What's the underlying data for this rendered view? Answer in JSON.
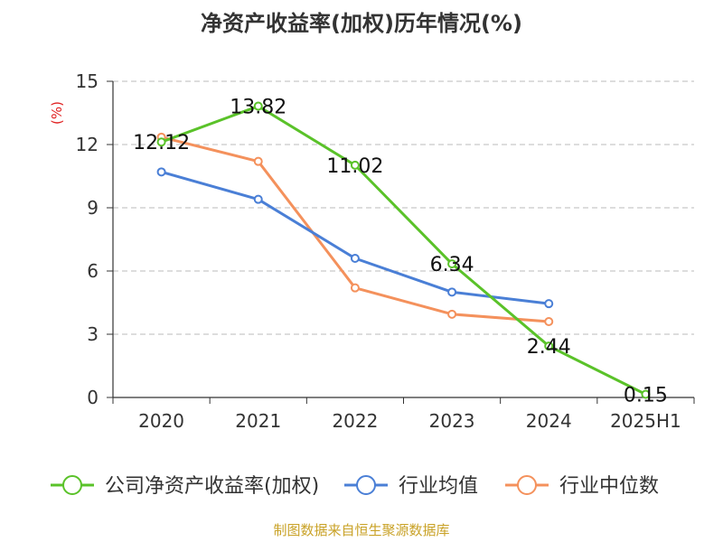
{
  "title": "净资产收益率(加权)历年情况(%)",
  "source": "制图数据来自恒生聚源数据库",
  "chart_data": {
    "type": "line",
    "title": "净资产收益率(加权)历年情况(%)",
    "ylabel": "(%)",
    "ylim": [
      0,
      15
    ],
    "yticks": [
      0,
      3,
      6,
      9,
      12,
      15
    ],
    "grid": true,
    "legend_position": "bottom",
    "categories": [
      "2020",
      "2021",
      "2022",
      "2023",
      "2024",
      "2025H1"
    ],
    "series": [
      {
        "name": "公司净资产收益率(加权)",
        "color": "#5ac229",
        "values": [
          12.12,
          13.82,
          11.02,
          6.34,
          2.44,
          0.15
        ],
        "labels": [
          "12.12",
          "13.82",
          "11.02",
          "6.34",
          "2.44",
          "0.15"
        ]
      },
      {
        "name": "行业均值",
        "color": "#4a7fd6",
        "values": [
          10.7,
          9.4,
          6.6,
          5.0,
          4.45,
          null
        ]
      },
      {
        "name": "行业中位数",
        "color": "#f4915c",
        "values": [
          12.35,
          11.2,
          5.2,
          3.95,
          3.6,
          null
        ]
      }
    ]
  }
}
